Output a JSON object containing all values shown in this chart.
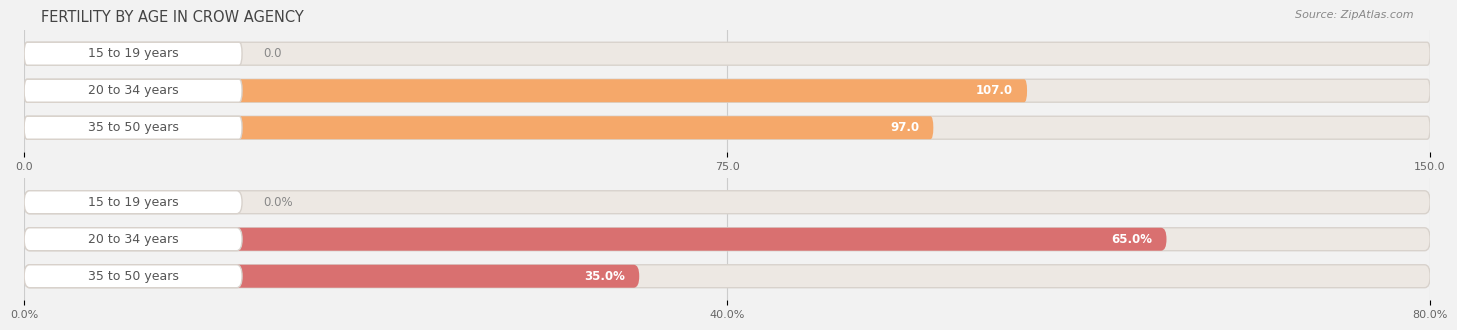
{
  "title": "FERTILITY BY AGE IN CROW AGENCY",
  "source": "Source: ZipAtlas.com",
  "top_chart": {
    "categories": [
      "15 to 19 years",
      "20 to 34 years",
      "35 to 50 years"
    ],
    "values": [
      0.0,
      107.0,
      97.0
    ],
    "xlim": [
      0,
      150
    ],
    "xticks": [
      0.0,
      75.0,
      150.0
    ],
    "xtick_labels": [
      "0.0",
      "75.0",
      "150.0"
    ],
    "bar_color": "#F5A86A",
    "bar_bg_color": "#EDE8E3",
    "label_pill_color": "#FFFFFF",
    "label_text_color": "#555555",
    "value_inside_color": "#FFFFFF",
    "value_outside_color": "#888888"
  },
  "bottom_chart": {
    "categories": [
      "15 to 19 years",
      "20 to 34 years",
      "35 to 50 years"
    ],
    "values": [
      0.0,
      65.0,
      35.0
    ],
    "xlim": [
      0,
      80
    ],
    "xticks": [
      0.0,
      40.0,
      80.0
    ],
    "xtick_labels": [
      "0.0%",
      "40.0%",
      "80.0%"
    ],
    "bar_color": "#D97070",
    "bar_bg_color": "#EDE8E3",
    "label_pill_color": "#FFFFFF",
    "label_text_color": "#555555",
    "value_inside_color": "#FFFFFF",
    "value_outside_color": "#888888"
  },
  "fig_bg_color": "#F2F2F2",
  "title_fontsize": 10.5,
  "label_fontsize": 8.5,
  "tick_fontsize": 8,
  "source_fontsize": 8,
  "category_fontsize": 9
}
